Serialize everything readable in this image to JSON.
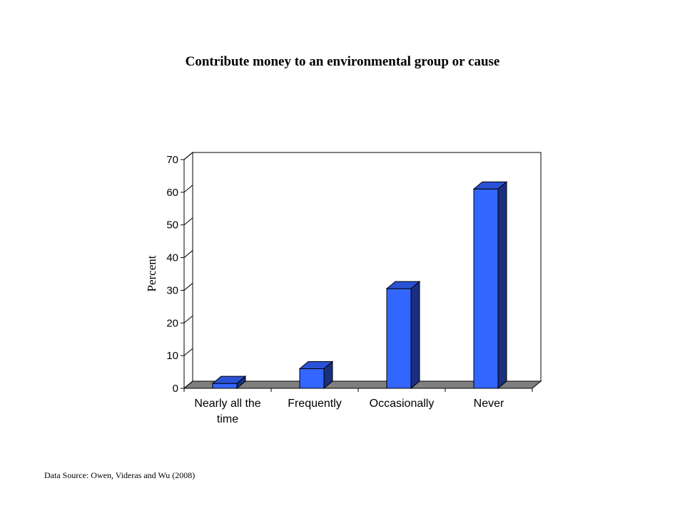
{
  "chart_data": {
    "type": "bar",
    "title": "Contribute money to an environmental group or cause",
    "xlabel": "",
    "ylabel": "Percent",
    "categories": [
      "Nearly all the time",
      "Frequently",
      "Occasionally",
      "Never"
    ],
    "category_lines": [
      [
        "Nearly all the",
        "time"
      ],
      [
        "Frequently"
      ],
      [
        "Occasionally"
      ],
      [
        "Never"
      ]
    ],
    "values": [
      1.5,
      6,
      30.5,
      61
    ],
    "ylim": [
      0,
      70
    ],
    "yticks": [
      0,
      10,
      20,
      30,
      40,
      50,
      60,
      70
    ],
    "grid": false,
    "legend": "none",
    "style": "3d",
    "colors": {
      "bar_front": "#3366ff",
      "bar_top": "#2a52d6",
      "bar_side": "#1a2f80",
      "floor": "#7f7f7f"
    }
  },
  "source": "Data Source: Owen, Videras and Wu (2008)"
}
